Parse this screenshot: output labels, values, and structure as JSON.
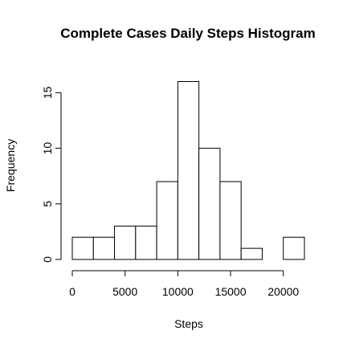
{
  "chart_data": {
    "type": "bar",
    "title": "Complete Cases Daily Steps Histogram",
    "xlabel": "Steps",
    "ylabel": "Frequency",
    "bin_edges": [
      0,
      2000,
      4000,
      6000,
      8000,
      10000,
      12000,
      14000,
      16000,
      18000,
      20000,
      22000
    ],
    "values": [
      2,
      2,
      3,
      3,
      7,
      16,
      10,
      7,
      1,
      0,
      2
    ],
    "xlim": [
      0,
      22000
    ],
    "ylim": [
      0,
      16
    ],
    "x_ticks": [
      0,
      5000,
      10000,
      15000,
      20000
    ],
    "x_tick_labels": [
      "0",
      "5000",
      "10000",
      "15000",
      "20000"
    ],
    "y_ticks": [
      0,
      5,
      10,
      15
    ],
    "y_tick_labels": [
      "0",
      "5",
      "10",
      "15"
    ],
    "grid": false,
    "bar_fill": "#ffffff",
    "bar_stroke": "#000000"
  }
}
